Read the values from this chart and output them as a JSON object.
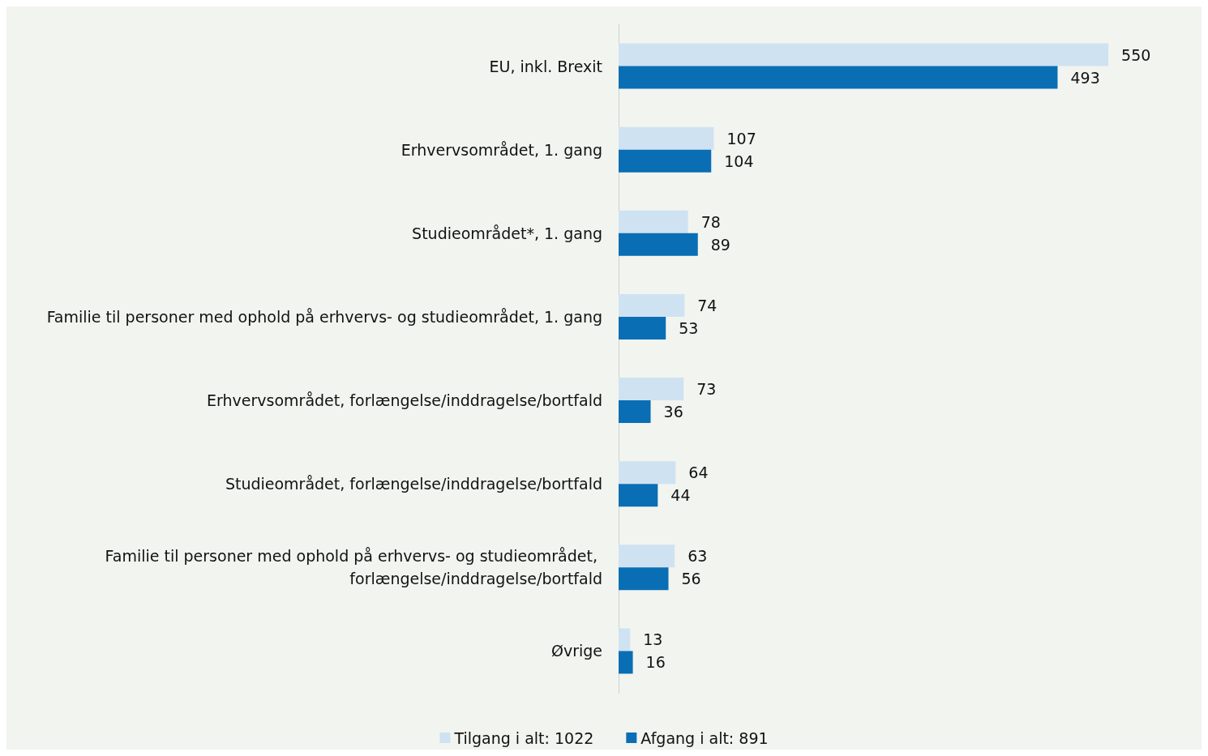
{
  "chart_data": {
    "type": "bar",
    "orientation": "horizontal",
    "categories": [
      "EU, inkl. Brexit",
      "Erhvervsområdet, 1. gang",
      "Studieområdet*, 1. gang",
      "Familie til personer med ophold på erhvervs- og studieområdet, 1. gang",
      "Erhvervsområdet, forlængelse/inddragelse/bortfald",
      "Studieområdet, forlængelse/inddragelse/bortfald",
      "Familie til personer med ophold på erhvervs- og studieområdet, forlængelse/inddragelse/bortfald",
      "Øvrige"
    ],
    "series": [
      {
        "name": "Tilgang i alt: 1022",
        "color": "#cfe2f2",
        "values": [
          550,
          107,
          78,
          74,
          73,
          64,
          63,
          13
        ]
      },
      {
        "name": "Afgang i alt: 891",
        "color": "#0a6eb4",
        "values": [
          493,
          104,
          89,
          53,
          36,
          44,
          56,
          16
        ]
      }
    ],
    "data_labels": true,
    "legend": "bottom",
    "grid": false
  }
}
